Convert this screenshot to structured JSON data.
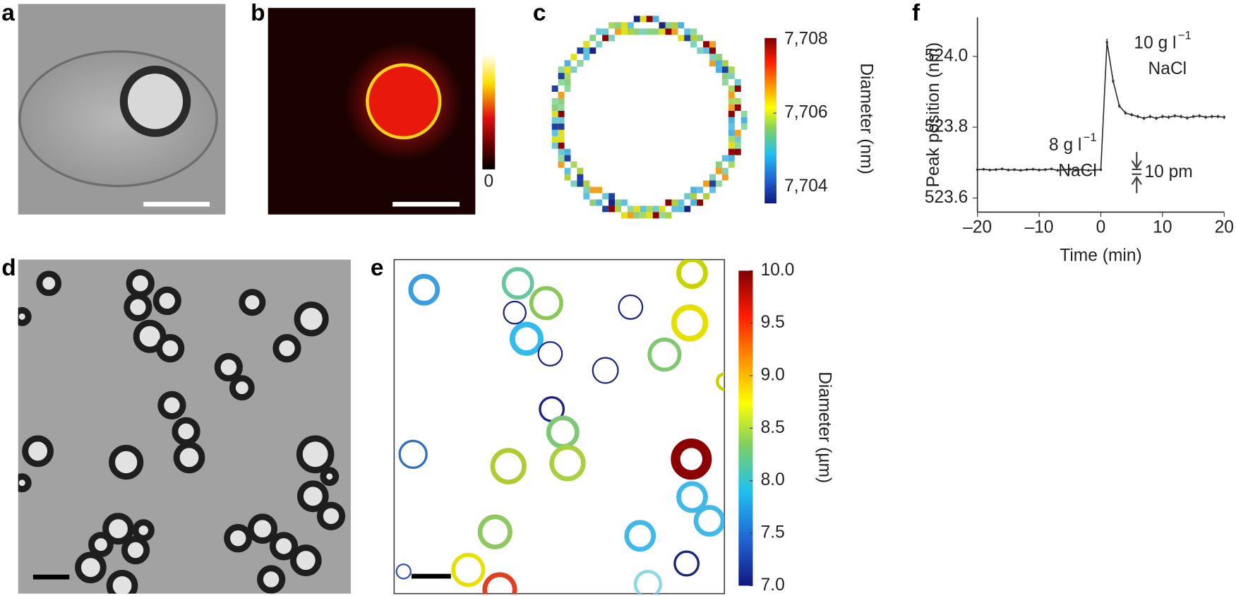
{
  "panel_labels": [
    "a",
    "b",
    "c",
    "d",
    "e",
    "f"
  ],
  "colorbars": [
    {
      "ticks": [
        0
      ]
    },
    {
      "label": "Diameter (nm)",
      "lim": [
        7703.55,
        7708.04
      ],
      "ticks": [
        {
          "value": 7708,
          "label": "7,708"
        },
        {
          "value": 7706,
          "label": "7,706"
        },
        {
          "value": 7704,
          "label": "7,704"
        }
      ]
    },
    {
      "label": "Diameter (µm)",
      "lim": [
        7,
        10
      ],
      "ticks": [
        {
          "value": 10,
          "label": "10.0"
        },
        9.5,
        {
          "value": 9,
          "label": "9.0"
        },
        8.5,
        {
          "value": 8,
          "label": "8.0"
        },
        7.5,
        {
          "value": 7,
          "label": "7.0"
        }
      ]
    }
  ],
  "chart_data": {
    "type": "line",
    "x_label": "Time (min)",
    "y_label": "Peak position (nm)",
    "xlim": [
      -20,
      20
    ],
    "ylim": [
      523.56,
      524.11
    ],
    "xticks": [
      {
        "value": -20,
        "label": "–20"
      },
      {
        "value": -10,
        "label": "–10"
      },
      0,
      10,
      20
    ],
    "yticks": [
      {
        "value": 524,
        "label": "524.0"
      },
      523.8,
      523.6
    ],
    "x": [
      -20,
      -19,
      -18,
      -17,
      -16,
      -15,
      -14,
      -13,
      -12,
      -11,
      -10,
      -9,
      -8,
      -7,
      -6,
      -5,
      -4,
      -3,
      -2,
      -1,
      0,
      1,
      2,
      3,
      4,
      5,
      6,
      7,
      8,
      9,
      10,
      11,
      12,
      13,
      14,
      15,
      16,
      17,
      18,
      19,
      20
    ],
    "series": [
      {
        "color": "#333333",
        "values": [
          523.68,
          523.681,
          523.679,
          523.68,
          523.682,
          523.679,
          523.68,
          523.678,
          523.68,
          523.681,
          523.679,
          523.68,
          523.682,
          523.678,
          523.68,
          523.681,
          523.679,
          523.68,
          523.678,
          523.679,
          523.68,
          524.04,
          523.93,
          523.86,
          523.84,
          523.835,
          523.83,
          523.825,
          523.83,
          523.825,
          523.83,
          523.828,
          523.832,
          523.83,
          523.826,
          523.83,
          523.832,
          523.828,
          523.83,
          523.83,
          523.828
        ],
        "errors": [
          0.004,
          0.004,
          0.004,
          0.004,
          0.004,
          0.004,
          0.004,
          0.004,
          0.004,
          0.004,
          0.004,
          0.004,
          0.004,
          0.004,
          0.004,
          0.004,
          0.004,
          0.004,
          0.004,
          0.004,
          0.004,
          0.01,
          0.006,
          0.005,
          0.005,
          0.005,
          0.005,
          0.005,
          0.005,
          0.005,
          0.005,
          0.005,
          0.005,
          0.005,
          0.005,
          0.005,
          0.005,
          0.005,
          0.005,
          0.005,
          0.005
        ]
      }
    ],
    "annotations": [
      {
        "text": "8 g l",
        "sup": "−1",
        "line2": "NaCl"
      },
      {
        "text": "10 g l",
        "sup": "−1",
        "line2": "NaCl"
      },
      {
        "text": "10 pm"
      }
    ]
  }
}
